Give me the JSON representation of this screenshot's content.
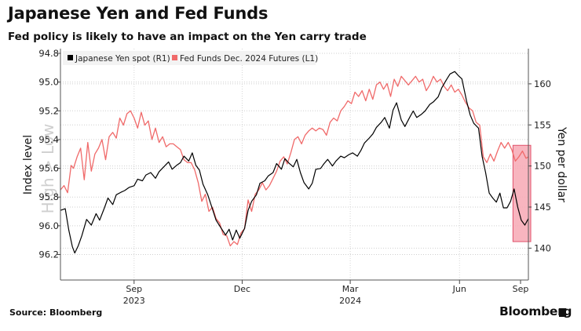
{
  "header": {
    "title": "Japanese Yen and Fed Funds",
    "subtitle": "Fed policy is likely to have an impact on the Yen carry trade"
  },
  "footer": {
    "source": "Source: Bloomberg",
    "brand": "Bloomberg"
  },
  "watermark": "High > Low",
  "colors": {
    "yen": "#000000",
    "fed": "#f06a6a",
    "highlight": "#f7a8b4"
  },
  "chart_data": {
    "type": "line",
    "title": "Japanese Yen and Fed Funds",
    "left_axis": {
      "label": "Index level",
      "reversed": true,
      "range": [
        94.8,
        96.35
      ],
      "ticks": [
        "94.8",
        "95.0",
        "95.2",
        "95.4",
        "95.6",
        "95.8",
        "96.0",
        "96.2"
      ]
    },
    "right_axis": {
      "label": "Yen per dollar",
      "range": [
        136.5,
        164.0
      ],
      "ticks": [
        "140",
        "145",
        "150",
        "155",
        "160"
      ]
    },
    "x_axis": {
      "range_days": [
        0,
        394
      ],
      "month_labels": [
        {
          "day": 62,
          "label": "Sep",
          "year": "2023"
        },
        {
          "day": 153,
          "label": "Dec",
          "year": ""
        },
        {
          "day": 244,
          "label": "Mar",
          "year": "2024"
        },
        {
          "day": 336,
          "label": "Jun",
          "year": ""
        },
        {
          "day": 397,
          "label": "Sep",
          "year": ""
        }
      ]
    },
    "legend": {
      "position": "top-left"
    },
    "series": [
      {
        "name": "Japanese Yen spot (R1)",
        "axis": "right",
        "points": [
          [
            0,
            144.6
          ],
          [
            4,
            144.8
          ],
          [
            7,
            142.2
          ],
          [
            10,
            140.2
          ],
          [
            12,
            139.4
          ],
          [
            15,
            140.3
          ],
          [
            18,
            141.5
          ],
          [
            22,
            143.5
          ],
          [
            26,
            142.8
          ],
          [
            30,
            144.2
          ],
          [
            33,
            143.4
          ],
          [
            37,
            144.9
          ],
          [
            40,
            146.1
          ],
          [
            44,
            145.3
          ],
          [
            47,
            146.5
          ],
          [
            51,
            146.8
          ],
          [
            54,
            147.0
          ],
          [
            58,
            147.4
          ],
          [
            62,
            147.6
          ],
          [
            65,
            148.4
          ],
          [
            69,
            148.2
          ],
          [
            72,
            148.9
          ],
          [
            76,
            149.2
          ],
          [
            80,
            148.5
          ],
          [
            83,
            149.3
          ],
          [
            87,
            149.9
          ],
          [
            91,
            150.5
          ],
          [
            94,
            149.6
          ],
          [
            98,
            150.1
          ],
          [
            101,
            150.4
          ],
          [
            104,
            151.2
          ],
          [
            108,
            150.6
          ],
          [
            111,
            151.6
          ],
          [
            114,
            150.1
          ],
          [
            117,
            149.5
          ],
          [
            120,
            147.8
          ],
          [
            124,
            146.5
          ],
          [
            127,
            145.2
          ],
          [
            131,
            143.4
          ],
          [
            135,
            142.5
          ],
          [
            139,
            141.6
          ],
          [
            142,
            142.3
          ],
          [
            145,
            141.0
          ],
          [
            148,
            142.2
          ],
          [
            151,
            141.2
          ],
          [
            155,
            142.4
          ],
          [
            158,
            144.6
          ],
          [
            161,
            145.7
          ],
          [
            165,
            146.5
          ],
          [
            168,
            147.9
          ],
          [
            172,
            148.2
          ],
          [
            175,
            148.8
          ],
          [
            179,
            149.2
          ],
          [
            182,
            150.3
          ],
          [
            186,
            149.6
          ],
          [
            189,
            150.9
          ],
          [
            192,
            150.4
          ],
          [
            196,
            149.9
          ],
          [
            199,
            150.8
          ],
          [
            202,
            149.2
          ],
          [
            205,
            148.0
          ],
          [
            209,
            147.2
          ],
          [
            212,
            147.9
          ],
          [
            215,
            149.6
          ],
          [
            219,
            149.7
          ],
          [
            222,
            150.3
          ],
          [
            225,
            150.8
          ],
          [
            229,
            150.0
          ],
          [
            232,
            150.6
          ],
          [
            236,
            151.2
          ],
          [
            239,
            151.0
          ],
          [
            243,
            151.4
          ],
          [
            246,
            151.6
          ],
          [
            250,
            151.2
          ],
          [
            253,
            151.9
          ],
          [
            256,
            152.8
          ],
          [
            260,
            153.4
          ],
          [
            263,
            153.9
          ],
          [
            266,
            154.7
          ],
          [
            270,
            155.3
          ],
          [
            273,
            155.9
          ],
          [
            277,
            154.6
          ],
          [
            280,
            156.8
          ],
          [
            283,
            157.7
          ],
          [
            287,
            155.6
          ],
          [
            290,
            154.8
          ],
          [
            294,
            155.9
          ],
          [
            297,
            156.7
          ],
          [
            300,
            155.9
          ],
          [
            304,
            156.3
          ],
          [
            307,
            156.7
          ],
          [
            311,
            157.5
          ],
          [
            314,
            157.8
          ],
          [
            318,
            158.4
          ],
          [
            321,
            159.5
          ],
          [
            325,
            160.5
          ],
          [
            328,
            161.2
          ],
          [
            332,
            161.5
          ],
          [
            335,
            161.0
          ],
          [
            338,
            160.6
          ],
          [
            342,
            157.9
          ],
          [
            345,
            156.2
          ],
          [
            348,
            155.2
          ],
          [
            352,
            154.6
          ],
          [
            355,
            151.2
          ],
          [
            358,
            149.2
          ],
          [
            361,
            146.7
          ],
          [
            364,
            146.1
          ],
          [
            367,
            145.6
          ],
          [
            370,
            146.7
          ],
          [
            373,
            144.9
          ],
          [
            376,
            144.9
          ],
          [
            379,
            145.7
          ],
          [
            382,
            147.2
          ],
          [
            385,
            145.0
          ],
          [
            388,
            143.4
          ],
          [
            391,
            142.8
          ],
          [
            394,
            143.6
          ]
        ]
      },
      {
        "name": "Fed Funds Dec. 2024 Futures (L1)",
        "axis": "left",
        "points": [
          [
            0,
            95.75
          ],
          [
            3,
            95.72
          ],
          [
            6,
            95.77
          ],
          [
            9,
            95.58
          ],
          [
            11,
            95.6
          ],
          [
            14,
            95.52
          ],
          [
            17,
            95.46
          ],
          [
            20,
            95.68
          ],
          [
            23,
            95.42
          ],
          [
            26,
            95.62
          ],
          [
            29,
            95.5
          ],
          [
            32,
            95.46
          ],
          [
            35,
            95.4
          ],
          [
            38,
            95.54
          ],
          [
            41,
            95.38
          ],
          [
            44,
            95.35
          ],
          [
            47,
            95.39
          ],
          [
            50,
            95.25
          ],
          [
            53,
            95.3
          ],
          [
            56,
            95.22
          ],
          [
            59,
            95.2
          ],
          [
            62,
            95.25
          ],
          [
            65,
            95.32
          ],
          [
            68,
            95.21
          ],
          [
            71,
            95.3
          ],
          [
            74,
            95.27
          ],
          [
            77,
            95.4
          ],
          [
            80,
            95.32
          ],
          [
            83,
            95.42
          ],
          [
            86,
            95.38
          ],
          [
            89,
            95.45
          ],
          [
            92,
            95.43
          ],
          [
            95,
            95.43
          ],
          [
            98,
            95.45
          ],
          [
            101,
            95.47
          ],
          [
            104,
            95.54
          ],
          [
            107,
            95.56
          ],
          [
            110,
            95.56
          ],
          [
            113,
            95.61
          ],
          [
            116,
            95.7
          ],
          [
            119,
            95.83
          ],
          [
            122,
            95.78
          ],
          [
            125,
            95.9
          ],
          [
            128,
            95.87
          ],
          [
            131,
            95.95
          ],
          [
            134,
            95.98
          ],
          [
            137,
            96.06
          ],
          [
            140,
            96.07
          ],
          [
            143,
            96.14
          ],
          [
            146,
            96.11
          ],
          [
            149,
            96.13
          ],
          [
            152,
            96.05
          ],
          [
            155,
            96.02
          ],
          [
            158,
            95.82
          ],
          [
            161,
            95.9
          ],
          [
            164,
            95.78
          ],
          [
            167,
            95.75
          ],
          [
            170,
            95.7
          ],
          [
            173,
            95.75
          ],
          [
            176,
            95.72
          ],
          [
            179,
            95.67
          ],
          [
            182,
            95.62
          ],
          [
            185,
            95.55
          ],
          [
            188,
            95.52
          ],
          [
            191,
            95.57
          ],
          [
            194,
            95.49
          ],
          [
            197,
            95.4
          ],
          [
            200,
            95.38
          ],
          [
            203,
            95.43
          ],
          [
            206,
            95.37
          ],
          [
            209,
            95.34
          ],
          [
            212,
            95.32
          ],
          [
            215,
            95.34
          ],
          [
            218,
            95.32
          ],
          [
            221,
            95.33
          ],
          [
            224,
            95.37
          ],
          [
            227,
            95.28
          ],
          [
            230,
            95.25
          ],
          [
            233,
            95.27
          ],
          [
            236,
            95.2
          ],
          [
            239,
            95.17
          ],
          [
            242,
            95.13
          ],
          [
            245,
            95.15
          ],
          [
            248,
            95.07
          ],
          [
            251,
            95.1
          ],
          [
            254,
            95.06
          ],
          [
            257,
            95.13
          ],
          [
            260,
            95.05
          ],
          [
            263,
            95.12
          ],
          [
            266,
            95.02
          ],
          [
            269,
            95.0
          ],
          [
            272,
            95.05
          ],
          [
            275,
            95.01
          ],
          [
            278,
            95.1
          ],
          [
            281,
            94.98
          ],
          [
            284,
            95.03
          ],
          [
            287,
            94.96
          ],
          [
            290,
            94.99
          ],
          [
            293,
            95.02
          ],
          [
            296,
            94.99
          ],
          [
            299,
            94.96
          ],
          [
            302,
            95.0
          ],
          [
            305,
            94.98
          ],
          [
            308,
            95.06
          ],
          [
            311,
            95.02
          ],
          [
            314,
            94.96
          ],
          [
            317,
            95.0
          ],
          [
            320,
            94.98
          ],
          [
            323,
            95.03
          ],
          [
            326,
            95.06
          ],
          [
            329,
            95.02
          ],
          [
            332,
            95.07
          ],
          [
            335,
            95.05
          ],
          [
            338,
            95.09
          ],
          [
            341,
            95.14
          ],
          [
            344,
            95.18
          ],
          [
            347,
            95.2
          ],
          [
            350,
            95.28
          ],
          [
            353,
            95.3
          ],
          [
            356,
            95.52
          ],
          [
            359,
            95.56
          ],
          [
            362,
            95.5
          ],
          [
            365,
            95.55
          ],
          [
            368,
            95.48
          ],
          [
            371,
            95.42
          ],
          [
            374,
            95.46
          ],
          [
            377,
            95.42
          ],
          [
            380,
            95.47
          ],
          [
            383,
            95.55
          ],
          [
            386,
            95.52
          ],
          [
            389,
            95.48
          ],
          [
            392,
            95.53
          ],
          [
            394,
            95.52
          ]
        ]
      }
    ],
    "highlight": {
      "day_range": [
        381,
        394
      ],
      "left_axis_range": [
        95.44,
        96.11
      ]
    }
  }
}
